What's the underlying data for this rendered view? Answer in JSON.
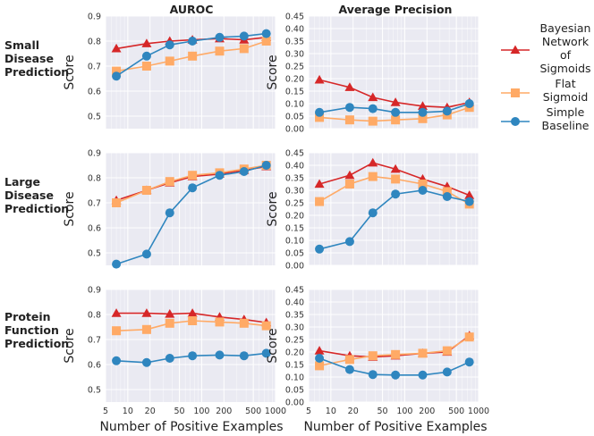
{
  "column_titles": [
    "AUROC",
    "Average Precision"
  ],
  "row_labels": [
    [
      "Small",
      "Disease",
      "Prediction"
    ],
    [
      "Large",
      "Disease",
      "Prediction"
    ],
    [
      "Protein",
      "Function",
      "Prediction"
    ]
  ],
  "y_label": "Score",
  "x_label": "Number of Positive Examples",
  "x_tick_labels": [
    "5",
    "10",
    "20",
    "50",
    "100",
    "200",
    "500",
    "1000"
  ],
  "auroc_tick_labels": [
    "0.5",
    "0.6",
    "0.7",
    "0.8",
    "0.9"
  ],
  "ap_tick_labels": [
    "0.00",
    "0.05",
    "0.10",
    "0.15",
    "0.20",
    "0.25",
    "0.30",
    "0.35",
    "0.40",
    "0.45"
  ],
  "legend": [
    {
      "key": "bns",
      "lines": [
        "Bayesian",
        "Network",
        "of",
        "Sigmoids"
      ]
    },
    {
      "key": "flat",
      "lines": [
        "Flat",
        "Sigmoid"
      ]
    },
    {
      "key": "simple",
      "lines": [
        "Simple",
        "Baseline"
      ]
    }
  ],
  "colors": {
    "bns": "#d62728",
    "flat": "#ffaa66",
    "simple": "#2f86bf",
    "panel_bg": "#eaeaf2",
    "grid": "#ffffff"
  },
  "chart_data": {
    "type": "line",
    "x_scale": "log",
    "x": [
      7,
      18,
      37,
      75,
      175,
      375,
      750
    ],
    "xlim": [
      5,
      1000
    ],
    "xlabel": "Number of Positive Examples",
    "ylabel": "Score",
    "panels": [
      {
        "row": 0,
        "col": 0,
        "metric": "AUROC",
        "task": "Small Disease Prediction",
        "ylim": [
          0.45,
          0.9
        ],
        "series": [
          {
            "name": "Bayesian Network of Sigmoids",
            "key": "bns",
            "values": [
              0.77,
              0.79,
              0.8,
              0.805,
              0.81,
              0.805,
              0.815
            ]
          },
          {
            "name": "Flat Sigmoid",
            "key": "flat",
            "values": [
              0.68,
              0.7,
              0.72,
              0.74,
              0.76,
              0.77,
              0.8
            ]
          },
          {
            "name": "Simple Baseline",
            "key": "simple",
            "values": [
              0.66,
              0.74,
              0.785,
              0.8,
              0.815,
              0.82,
              0.83
            ]
          }
        ]
      },
      {
        "row": 0,
        "col": 1,
        "metric": "Average Precision",
        "task": "Small Disease Prediction",
        "ylim": [
          0,
          0.45
        ],
        "series": [
          {
            "name": "Bayesian Network of Sigmoids",
            "key": "bns",
            "values": [
              0.195,
              0.165,
              0.125,
              0.105,
              0.09,
              0.085,
              0.105
            ]
          },
          {
            "name": "Flat Sigmoid",
            "key": "flat",
            "values": [
              0.045,
              0.035,
              0.03,
              0.035,
              0.04,
              0.055,
              0.085
            ]
          },
          {
            "name": "Simple Baseline",
            "key": "simple",
            "values": [
              0.065,
              0.085,
              0.08,
              0.065,
              0.065,
              0.07,
              0.1
            ]
          }
        ]
      },
      {
        "row": 1,
        "col": 0,
        "metric": "AUROC",
        "task": "Large Disease Prediction",
        "ylim": [
          0.45,
          0.9
        ],
        "series": [
          {
            "name": "Bayesian Network of Sigmoids",
            "key": "bns",
            "values": [
              0.71,
              0.75,
              0.78,
              0.805,
              0.815,
              0.83,
              0.845
            ]
          },
          {
            "name": "Flat Sigmoid",
            "key": "flat",
            "values": [
              0.7,
              0.75,
              0.785,
              0.81,
              0.82,
              0.835,
              0.85
            ]
          },
          {
            "name": "Simple Baseline",
            "key": "simple",
            "values": [
              0.455,
              0.495,
              0.66,
              0.76,
              0.81,
              0.825,
              0.85
            ]
          }
        ]
      },
      {
        "row": 1,
        "col": 1,
        "metric": "Average Precision",
        "task": "Large Disease Prediction",
        "ylim": [
          0,
          0.45
        ],
        "series": [
          {
            "name": "Bayesian Network of Sigmoids",
            "key": "bns",
            "values": [
              0.325,
              0.36,
              0.41,
              0.385,
              0.345,
              0.315,
              0.28
            ]
          },
          {
            "name": "Flat Sigmoid",
            "key": "flat",
            "values": [
              0.255,
              0.325,
              0.355,
              0.345,
              0.325,
              0.295,
              0.245
            ]
          },
          {
            "name": "Simple Baseline",
            "key": "simple",
            "values": [
              0.065,
              0.095,
              0.21,
              0.285,
              0.3,
              0.275,
              0.255
            ]
          }
        ]
      },
      {
        "row": 2,
        "col": 0,
        "metric": "AUROC",
        "task": "Protein Function Prediction",
        "ylim": [
          0.45,
          0.9
        ],
        "series": [
          {
            "name": "Bayesian Network of Sigmoids",
            "key": "bns",
            "values": [
              0.805,
              0.805,
              0.802,
              0.805,
              0.79,
              0.78,
              0.768
            ]
          },
          {
            "name": "Flat Sigmoid",
            "key": "flat",
            "values": [
              0.735,
              0.74,
              0.765,
              0.775,
              0.77,
              0.765,
              0.755
            ]
          },
          {
            "name": "Simple Baseline",
            "key": "simple",
            "values": [
              0.615,
              0.608,
              0.625,
              0.635,
              0.638,
              0.635,
              0.645
            ]
          }
        ]
      },
      {
        "row": 2,
        "col": 1,
        "metric": "Average Precision",
        "task": "Protein Function Prediction",
        "ylim": [
          0,
          0.45
        ],
        "series": [
          {
            "name": "Bayesian Network of Sigmoids",
            "key": "bns",
            "values": [
              0.205,
              0.185,
              0.18,
              0.185,
              0.195,
              0.2,
              0.265
            ]
          },
          {
            "name": "Flat Sigmoid",
            "key": "flat",
            "values": [
              0.145,
              0.17,
              0.185,
              0.19,
              0.195,
              0.205,
              0.26
            ]
          },
          {
            "name": "Simple Baseline",
            "key": "simple",
            "values": [
              0.175,
              0.13,
              0.11,
              0.108,
              0.108,
              0.12,
              0.16
            ]
          }
        ]
      }
    ]
  }
}
